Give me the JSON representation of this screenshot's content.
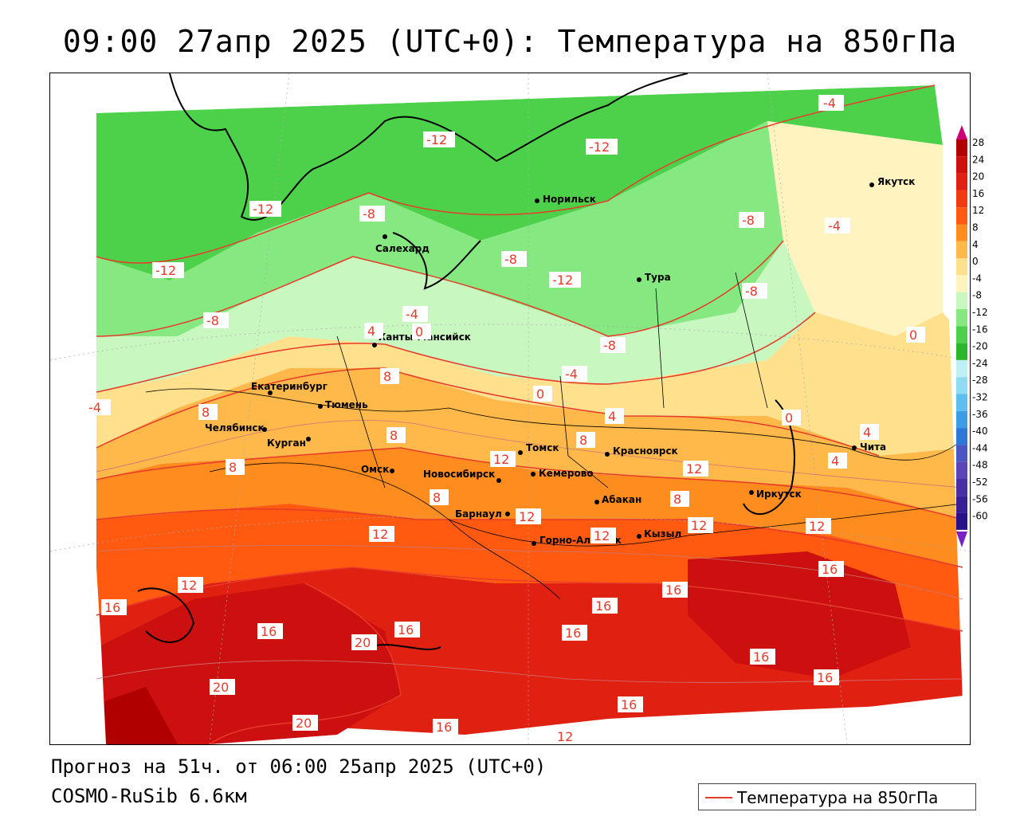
{
  "title": "09:00 27апр 2025 (UTC+0): Температура на 850гПа",
  "footer": {
    "forecast": "Прогноз на 51ч. от 06:00 25апр 2025 (UTC+0)",
    "model": "COSMO-RuSib 6.6км"
  },
  "legend": {
    "label": "Температура на 850гПа",
    "line_color": "#e83a2a"
  },
  "colorbar": {
    "levels": [
      "28",
      "24",
      "20",
      "16",
      "12",
      "8",
      "4",
      "0",
      "-4",
      "-8",
      "-12",
      "-16",
      "-20",
      "-24",
      "-28",
      "-32",
      "-36",
      "-40",
      "-44",
      "-48",
      "-52",
      "-56",
      "-60"
    ],
    "colors": [
      "#b00000",
      "#cc1010",
      "#e02010",
      "#f03a10",
      "#ff5a10",
      "#ff8c1e",
      "#ffb84a",
      "#ffe08c",
      "#fff4bf",
      "#c8f7c0",
      "#86e880",
      "#4ed14a",
      "#2ab82a",
      "#bff0f5",
      "#8fdcf2",
      "#5cbfef",
      "#3a9de6",
      "#2c78d8",
      "#4a56c4",
      "#5a44b8",
      "#4a2ea6",
      "#3a1e98",
      "#2a108a"
    ],
    "top_arrow_color": "#cc0077",
    "bottom_arrow_color": "#7a22c0"
  },
  "cities": [
    {
      "name": "Якутск"
    },
    {
      "name": "Норильск"
    },
    {
      "name": "Салехард"
    },
    {
      "name": "Тура"
    },
    {
      "name": "Ханты-Мансийск"
    },
    {
      "name": "Екатеринбург"
    },
    {
      "name": "Тюмень"
    },
    {
      "name": "Челябинск"
    },
    {
      "name": "Курган"
    },
    {
      "name": "Омск"
    },
    {
      "name": "Томск"
    },
    {
      "name": "Красноярск"
    },
    {
      "name": "Кемерово"
    },
    {
      "name": "Новосибирск"
    },
    {
      "name": "Абакан"
    },
    {
      "name": "Иркутск"
    },
    {
      "name": "Чита"
    },
    {
      "name": "Барнаул"
    },
    {
      "name": "Горно-Алтайск"
    },
    {
      "name": "Кызыл"
    }
  ],
  "isotherm_labels": [
    {
      "text": "-4"
    },
    {
      "text": "-12"
    },
    {
      "text": "-12"
    },
    {
      "text": "-12"
    },
    {
      "text": "-8"
    },
    {
      "text": "-8"
    },
    {
      "text": "-4"
    },
    {
      "text": "-12"
    },
    {
      "text": "-8"
    },
    {
      "text": "-12"
    },
    {
      "text": "-8"
    },
    {
      "text": "-8"
    },
    {
      "text": "-4"
    },
    {
      "text": "0"
    },
    {
      "text": "4"
    },
    {
      "text": "-8"
    },
    {
      "text": "-4"
    },
    {
      "text": "0"
    },
    {
      "text": "-4"
    },
    {
      "text": "8"
    },
    {
      "text": "8"
    },
    {
      "text": "8"
    },
    {
      "text": "8"
    },
    {
      "text": "0"
    },
    {
      "text": "4"
    },
    {
      "text": "8"
    },
    {
      "text": "12"
    },
    {
      "text": "8"
    },
    {
      "text": "12"
    },
    {
      "text": "12"
    },
    {
      "text": "12"
    },
    {
      "text": "8"
    },
    {
      "text": "12"
    },
    {
      "text": "4"
    },
    {
      "text": "12"
    },
    {
      "text": "12"
    },
    {
      "text": "12"
    },
    {
      "text": "16"
    },
    {
      "text": "16"
    },
    {
      "text": "16"
    },
    {
      "text": "16"
    },
    {
      "text": "16"
    },
    {
      "text": "20"
    },
    {
      "text": "16"
    },
    {
      "text": "16"
    },
    {
      "text": "16"
    },
    {
      "text": "20"
    },
    {
      "text": "16"
    },
    {
      "text": "20"
    },
    {
      "text": "16"
    },
    {
      "text": "16"
    },
    {
      "text": "12"
    },
    {
      "text": "0"
    },
    {
      "text": "4"
    }
  ]
}
